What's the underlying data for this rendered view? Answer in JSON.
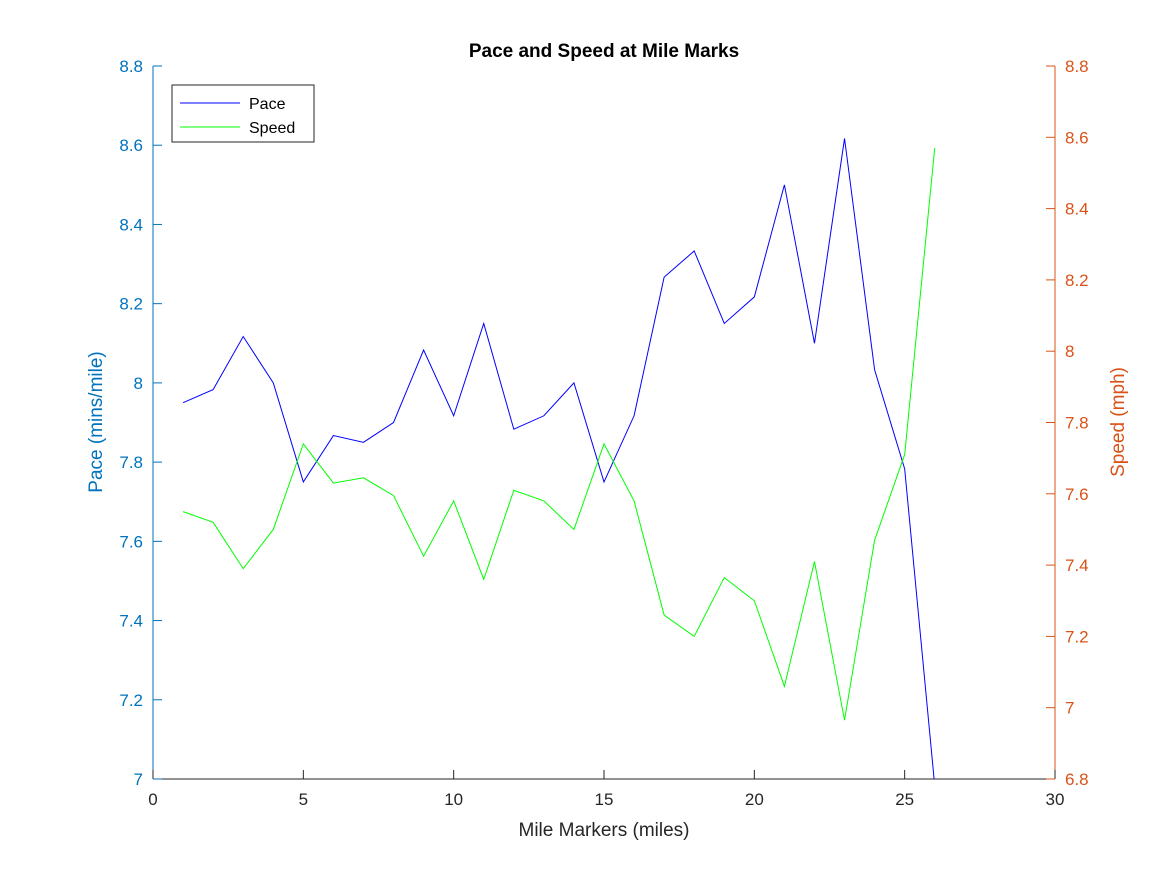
{
  "chart_data": {
    "type": "line",
    "title": "Pace and Speed at Mile Marks",
    "xlabel": "Mile Markers (miles)",
    "ylabel_left": "Pace (mins/mile)",
    "ylabel_right": "Speed (mph)",
    "xlim": [
      0,
      30
    ],
    "ylim_left": [
      7,
      8.8
    ],
    "ylim_right": [
      6.8,
      8.8
    ],
    "x_ticks": [
      "0",
      "5",
      "10",
      "15",
      "20",
      "25",
      "30"
    ],
    "y_left_ticks": [
      "7",
      "7.2",
      "7.4",
      "7.6",
      "7.8",
      "8",
      "8.2",
      "8.4",
      "8.6",
      "8.8"
    ],
    "y_right_ticks": [
      "6.8",
      "7",
      "7.2",
      "7.4",
      "7.6",
      "7.8",
      "8",
      "8.2",
      "8.4",
      "8.6",
      "8.8"
    ],
    "grid": false,
    "legend_position": "top-left",
    "x": [
      1,
      2,
      3,
      4,
      5,
      6,
      7,
      8,
      9,
      10,
      11,
      12,
      13,
      14,
      15,
      16,
      17,
      18,
      19,
      20,
      21,
      22,
      23,
      24,
      25,
      26
    ],
    "series": [
      {
        "name": "Pace",
        "axis": "left",
        "color": "#0000FF",
        "values": [
          7.95,
          7.983,
          8.117,
          8.0,
          7.75,
          7.867,
          7.85,
          7.9,
          8.083,
          7.917,
          8.15,
          7.883,
          7.917,
          8.0,
          7.75,
          7.917,
          8.267,
          8.333,
          8.15,
          8.217,
          8.5,
          8.1,
          8.617,
          8.033,
          7.783,
          6.983
        ]
      },
      {
        "name": "Speed",
        "axis": "right",
        "color": "#00FF00",
        "values": [
          7.55,
          7.52,
          7.39,
          7.5,
          7.74,
          7.63,
          7.645,
          7.595,
          7.425,
          7.58,
          7.36,
          7.61,
          7.58,
          7.5,
          7.74,
          7.58,
          7.26,
          7.2,
          7.365,
          7.3,
          7.06,
          7.41,
          6.965,
          7.47,
          7.71,
          8.57
        ]
      }
    ]
  },
  "colors": {
    "left_axis": "#0072BD",
    "right_axis": "#D95319",
    "x_axis": "#262626"
  }
}
